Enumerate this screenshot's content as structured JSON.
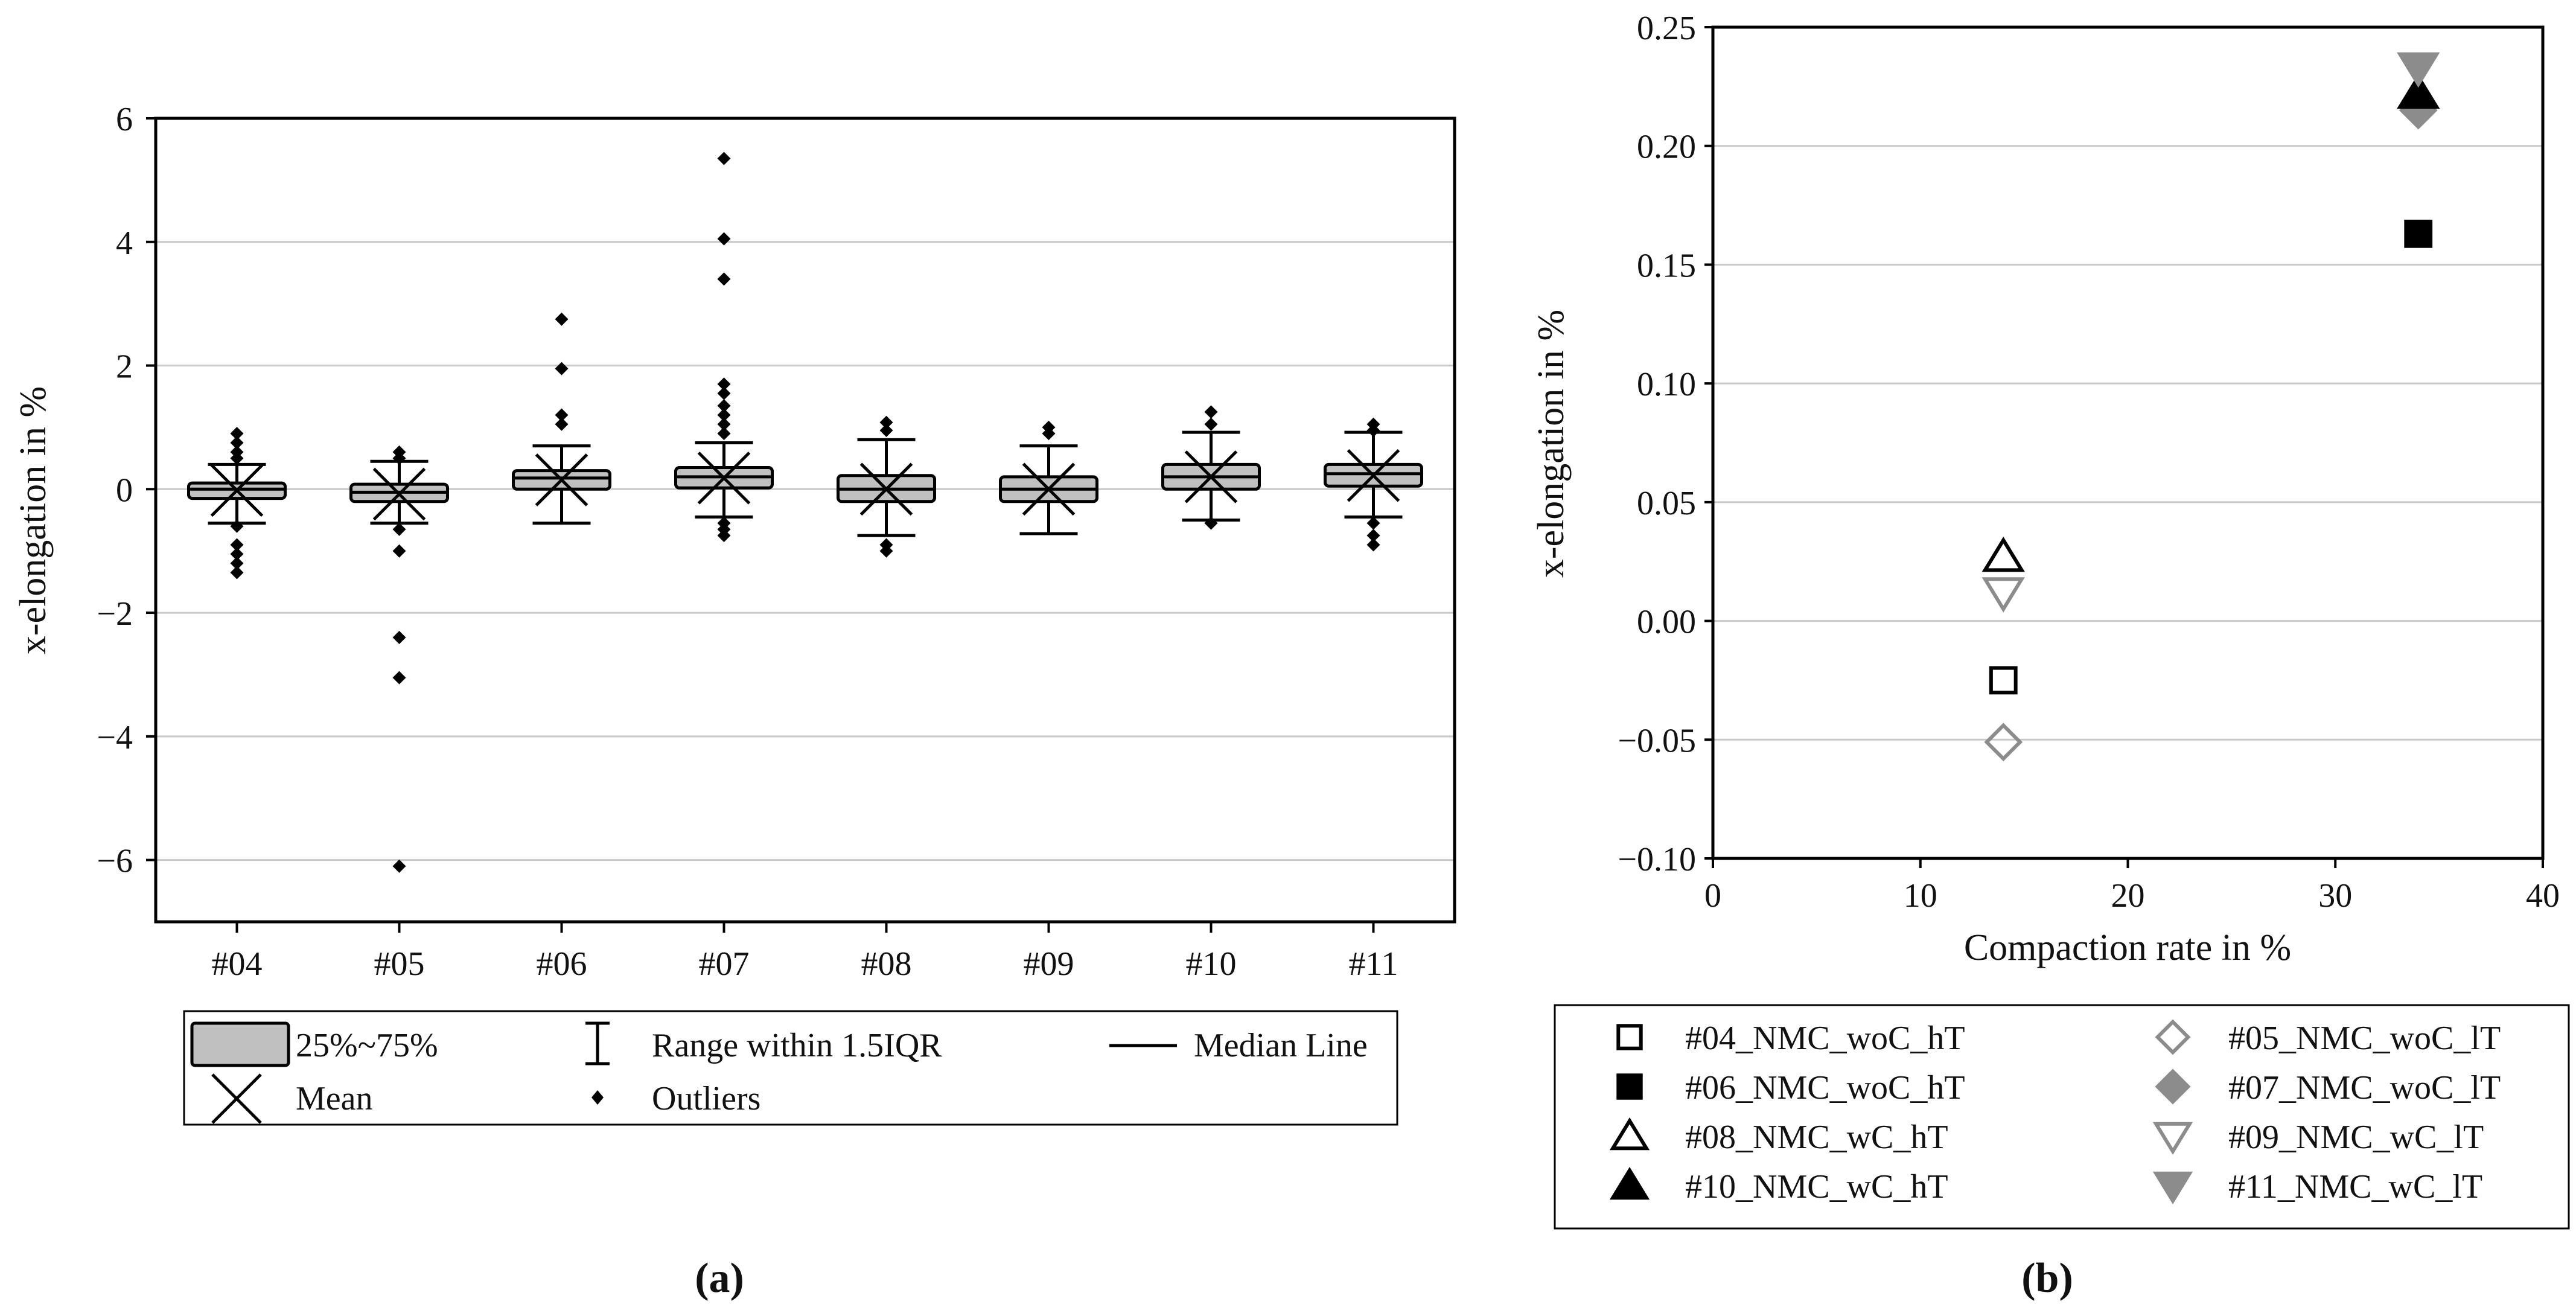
{
  "chart_data": [
    {
      "type": "box",
      "panel_label": "a",
      "title": "",
      "xlabel": "",
      "ylabel": "x-elongation in %",
      "ylim": [
        -7,
        6
      ],
      "yticks": [
        6,
        4,
        2,
        0,
        -2,
        -4,
        -6
      ],
      "ytick_labels": [
        "6",
        "4",
        "2",
        "0",
        "−2",
        "−4",
        "−6"
      ],
      "grid": true,
      "categories": [
        "#04",
        "#05",
        "#06",
        "#07",
        "#08",
        "#09",
        "#10",
        "#11"
      ],
      "boxes": [
        {
          "q1": -0.15,
          "median": 0.0,
          "q3": 0.1,
          "whisker_low": -0.55,
          "whisker_high": 0.4,
          "mean": -0.02,
          "outliers": [
            0.9,
            0.75,
            0.6,
            0.5,
            -0.6,
            -0.9,
            -1.05,
            -1.2,
            -1.35
          ]
        },
        {
          "q1": -0.2,
          "median": -0.05,
          "q3": 0.08,
          "whisker_low": -0.55,
          "whisker_high": 0.45,
          "mean": -0.08,
          "outliers": [
            0.6,
            0.5,
            -0.65,
            -1.0,
            -2.4,
            -3.05,
            -6.1
          ]
        },
        {
          "q1": 0.0,
          "median": 0.18,
          "q3": 0.3,
          "whisker_low": -0.55,
          "whisker_high": 0.7,
          "mean": 0.15,
          "outliers": [
            2.75,
            1.95,
            1.2,
            1.05
          ]
        },
        {
          "q1": 0.02,
          "median": 0.2,
          "q3": 0.35,
          "whisker_low": -0.45,
          "whisker_high": 0.75,
          "mean": 0.18,
          "outliers": [
            5.35,
            4.05,
            3.4,
            1.7,
            1.55,
            1.35,
            1.2,
            1.05,
            0.9,
            -0.55,
            -0.65,
            -0.75
          ]
        },
        {
          "q1": -0.2,
          "median": 0.0,
          "q3": 0.22,
          "whisker_low": -0.75,
          "whisker_high": 0.8,
          "mean": 0.0,
          "outliers": [
            1.08,
            0.95,
            -0.9,
            -1.0
          ]
        },
        {
          "q1": -0.2,
          "median": 0.0,
          "q3": 0.2,
          "whisker_low": -0.72,
          "whisker_high": 0.7,
          "mean": 0.0,
          "outliers": [
            1.0,
            0.9
          ]
        },
        {
          "q1": 0.0,
          "median": 0.2,
          "q3": 0.4,
          "whisker_low": -0.5,
          "whisker_high": 0.92,
          "mean": 0.2,
          "outliers": [
            1.25,
            1.05,
            -0.55
          ]
        },
        {
          "q1": 0.05,
          "median": 0.25,
          "q3": 0.4,
          "whisker_low": -0.45,
          "whisker_high": 0.92,
          "mean": 0.22,
          "outliers": [
            1.05,
            0.95,
            -0.55,
            -0.75,
            -0.9
          ]
        }
      ],
      "legend": {
        "placement": "below",
        "items": [
          {
            "symbol": "box",
            "label": "25%~75%"
          },
          {
            "symbol": "whisker",
            "label": "Range within 1.5IQR"
          },
          {
            "symbol": "median-line",
            "label": "Median Line"
          },
          {
            "symbol": "mean-x",
            "label": "Mean"
          },
          {
            "symbol": "outlier-diamond",
            "label": "Outliers"
          }
        ]
      }
    },
    {
      "type": "scatter",
      "panel_label": "b",
      "title": "",
      "xlabel": "Compaction rate in %",
      "ylabel": "x-elongation in %",
      "xlim": [
        0,
        40
      ],
      "ylim": [
        -0.1,
        0.25
      ],
      "xticks": [
        0,
        10,
        20,
        30,
        40
      ],
      "xtick_labels": [
        "0",
        "10",
        "20",
        "30",
        "40"
      ],
      "yticks": [
        0.25,
        0.2,
        0.15,
        0.1,
        0.05,
        0.0,
        -0.05,
        -0.1
      ],
      "ytick_labels": [
        "0.25",
        "0.20",
        "0.15",
        "0.10",
        "0.05",
        "0.00",
        "−0.05",
        "−0.10"
      ],
      "grid": true,
      "series": [
        {
          "name": "#04_NMC_woC_hT",
          "marker": "square-open",
          "color": "#000000",
          "x": 14,
          "y": -0.025
        },
        {
          "name": "#05_NMC_woC_lT",
          "marker": "diamond-open",
          "color": "#8c8c8c",
          "x": 14,
          "y": -0.051
        },
        {
          "name": "#06_NMC_woC_hT",
          "marker": "square-filled",
          "color": "#000000",
          "x": 34,
          "y": 0.163
        },
        {
          "name": "#07_NMC_woC_lT",
          "marker": "diamond-filled",
          "color": "#8c8c8c",
          "x": 34,
          "y": 0.215
        },
        {
          "name": "#08_NMC_wC_hT",
          "marker": "triangle-up-open",
          "color": "#000000",
          "x": 14,
          "y": 0.027
        },
        {
          "name": "#09_NMC_wC_lT",
          "marker": "triangle-down-open",
          "color": "#8c8c8c",
          "x": 14,
          "y": 0.012
        },
        {
          "name": "#10_NMC_wC_hT",
          "marker": "triangle-up-filled",
          "color": "#000000",
          "x": 34,
          "y": 0.222
        },
        {
          "name": "#11_NMC_wC_lT",
          "marker": "triangle-down-filled",
          "color": "#8c8c8c",
          "x": 34,
          "y": 0.233
        }
      ],
      "legend": {
        "placement": "below"
      }
    }
  ],
  "panel_labels": {
    "a": "(a)",
    "b": "(b)"
  },
  "colors": {
    "axis": "#000000",
    "grid": "#c8c8c8",
    "box_fill": "#c0c0c0",
    "gray_marker": "#8c8c8c"
  }
}
